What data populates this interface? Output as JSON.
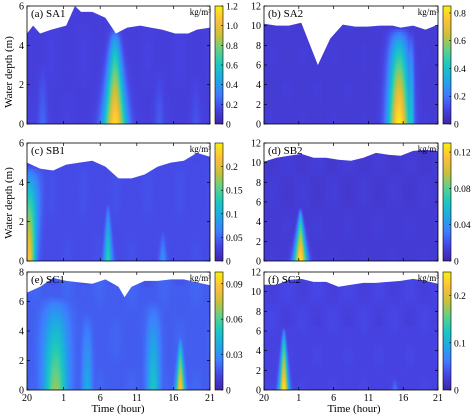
{
  "figure": {
    "ylabel": "Water depth (m)",
    "xlabel": "Time (hour)",
    "x_ticks": [
      "20",
      "1",
      "6",
      "11",
      "16",
      "21"
    ],
    "colors": {
      "background": "#ffffff",
      "surface_fill": "#ffffff",
      "colormap": [
        "#3e26a8",
        "#4743e3",
        "#3e7dfe",
        "#1fa8e4",
        "#1ac7c2",
        "#5fd08a",
        "#c9c13a",
        "#fdbf3c",
        "#f8f00e"
      ]
    }
  },
  "chart_data": [
    {
      "type": "heatmap",
      "label": "(a) SA1",
      "unit": "kg/m³",
      "ylim": [
        0,
        6
      ],
      "y_ticks": [
        0,
        2,
        4,
        6
      ],
      "clim": [
        0,
        1.2
      ],
      "cbar_ticks": [
        "0",
        "0.2",
        "0.4",
        "0.6",
        "0.8",
        "1.0",
        "1.2"
      ],
      "surface": {
        "x": [
          0,
          0.7,
          1.5,
          2.8,
          4.5,
          5.5,
          6.2,
          7.5,
          9,
          10.2,
          11.5,
          13,
          14.2,
          15.5,
          17,
          18.5,
          19.5,
          21
        ],
        "depth": [
          4.6,
          5.0,
          4.6,
          4.8,
          5.0,
          6.0,
          5.7,
          5.7,
          5.4,
          4.6,
          4.9,
          5.0,
          4.9,
          4.8,
          4.6,
          4.6,
          4.8,
          4.9
        ]
      },
      "background_level": 0.13,
      "plumes": [
        {
          "x": 10.1,
          "peak": 1.15,
          "width_bottom": 0.9,
          "width_top": 0.35,
          "top": 5.0
        },
        {
          "x": 1.8,
          "peak": 0.25,
          "width_bottom": 0.4,
          "width_top": 0.25,
          "top": 4.6
        },
        {
          "x": 15.2,
          "peak": 0.22,
          "width_bottom": 0.4,
          "width_top": 0.25,
          "top": 4.8
        },
        {
          "x": 19.4,
          "peak": 0.2,
          "width_bottom": 0.4,
          "width_top": 0.25,
          "top": 4.7
        }
      ]
    },
    {
      "type": "heatmap",
      "label": "(b) SA2",
      "unit": "kg/m³",
      "ylim": [
        0,
        12
      ],
      "y_ticks": [
        0,
        2,
        4,
        6,
        8,
        10,
        12
      ],
      "clim": [
        0,
        0.85
      ],
      "cbar_ticks": [
        "0",
        "0.2",
        "0.4",
        "0.6",
        "0.8"
      ],
      "surface": {
        "x": [
          0,
          1.5,
          3,
          4.5,
          6.5,
          8,
          9.5,
          11,
          12.5,
          14,
          15.5,
          16.5,
          18,
          19.5,
          21
        ],
        "depth": [
          10.2,
          10.0,
          10.0,
          10.3,
          6.0,
          8.7,
          10.1,
          9.9,
          9.9,
          10.0,
          10.0,
          9.8,
          10.0,
          9.6,
          10.1
        ]
      },
      "background_level": 0.08,
      "plumes": [
        {
          "x": 16.3,
          "peak": 0.86,
          "width_bottom": 0.9,
          "width_top": 0.8,
          "top": 10.0
        },
        {
          "x": 15.2,
          "peak": 0.4,
          "width_bottom": 0.3,
          "width_top": 0.3,
          "top": 10.0
        },
        {
          "x": 17.7,
          "peak": 0.45,
          "width_bottom": 0.3,
          "width_top": 0.3,
          "top": 10.0
        }
      ]
    },
    {
      "type": "heatmap",
      "label": "(c) SB1",
      "unit": "kg/m³",
      "ylim": [
        0,
        6
      ],
      "y_ticks": [
        0,
        2,
        4,
        6
      ],
      "clim": [
        0,
        0.25
      ],
      "cbar_ticks": [
        "0",
        "0.05",
        "0.1",
        "0.15",
        "0.2"
      ],
      "surface": {
        "x": [
          0,
          1.5,
          3,
          4.5,
          6,
          7.5,
          9,
          10.5,
          12,
          13.5,
          15,
          16.5,
          18,
          19.5,
          21
        ],
        "depth": [
          5.0,
          4.7,
          4.6,
          4.9,
          5.0,
          5.1,
          4.8,
          4.2,
          4.2,
          4.4,
          4.8,
          5.0,
          5.1,
          5.5,
          5.3
        ]
      },
      "background_level": 0.035,
      "plumes": [
        {
          "x": 0.2,
          "peak": 0.23,
          "width_bottom": 0.5,
          "width_top": 0.9,
          "top": 5.0
        },
        {
          "x": 9.3,
          "peak": 0.14,
          "width_bottom": 0.35,
          "width_top": 0.1,
          "top": 3.2
        },
        {
          "x": 15.6,
          "peak": 0.08,
          "width_bottom": 0.3,
          "width_top": 0.1,
          "top": 2.0
        }
      ]
    },
    {
      "type": "heatmap",
      "label": "(d) SB2",
      "unit": "kg/m³",
      "ylim": [
        0,
        12
      ],
      "y_ticks": [
        0,
        2,
        4,
        6,
        8,
        10,
        12
      ],
      "clim": [
        0,
        0.13
      ],
      "cbar_ticks": [
        "0",
        "0.04",
        "0.08",
        "0.12"
      ],
      "surface": {
        "x": [
          0,
          1.5,
          3,
          4.5,
          6,
          7.5,
          9,
          10.5,
          12,
          13.5,
          15,
          16.5,
          18,
          19.5,
          21
        ],
        "depth": [
          10.1,
          10.5,
          10.7,
          10.9,
          10.5,
          10.5,
          10.3,
          10.2,
          10.5,
          11.0,
          10.8,
          10.7,
          11.2,
          11.3,
          11.2
        ]
      },
      "background_level": 0.012,
      "plumes": [
        {
          "x": 4.4,
          "peak": 0.13,
          "width_bottom": 0.55,
          "width_top": 0.1,
          "top": 5.5
        }
      ]
    },
    {
      "type": "heatmap",
      "label": "(e) SC1",
      "unit": "kg/m³",
      "ylim": [
        0,
        8
      ],
      "y_ticks": [
        0,
        2,
        4,
        6,
        8
      ],
      "clim": [
        0,
        0.1
      ],
      "cbar_ticks": [
        "0",
        "0.03",
        "0.06",
        "0.09"
      ],
      "surface": {
        "x": [
          0,
          1.5,
          3,
          4.5,
          6,
          7.5,
          9,
          10.5,
          11.2,
          12,
          13.5,
          15,
          16.5,
          18,
          19.5,
          21
        ],
        "depth": [
          6.6,
          7.0,
          7.6,
          7.4,
          7.3,
          7.2,
          7.5,
          7.0,
          6.3,
          7.0,
          7.4,
          7.4,
          7.5,
          7.5,
          7.3,
          7.1
        ]
      },
      "background_level": 0.018,
      "plumes": [
        {
          "x": 3.3,
          "peak": 0.07,
          "width_bottom": 0.9,
          "width_top": 1.1,
          "top": 7.0
        },
        {
          "x": 6.9,
          "peak": 0.04,
          "width_bottom": 0.4,
          "width_top": 0.4,
          "top": 7.0
        },
        {
          "x": 14.5,
          "peak": 0.05,
          "width_bottom": 0.5,
          "width_top": 0.6,
          "top": 7.2
        },
        {
          "x": 17.6,
          "peak": 0.092,
          "width_bottom": 0.35,
          "width_top": 0.1,
          "top": 3.8
        }
      ]
    },
    {
      "type": "heatmap",
      "label": "(f) SC2",
      "unit": "kg/m³",
      "ylim": [
        0,
        12
      ],
      "y_ticks": [
        0,
        2,
        4,
        6,
        8,
        10,
        12
      ],
      "clim": [
        0,
        0.25
      ],
      "cbar_ticks": [
        "0",
        "0.1",
        "0.2"
      ],
      "surface": {
        "x": [
          0,
          1.5,
          3,
          4.5,
          6,
          7.5,
          9,
          10.5,
          12,
          13.5,
          15,
          16.5,
          18,
          19.5,
          21
        ],
        "depth": [
          10.7,
          10.7,
          11.2,
          11.3,
          11.0,
          11.0,
          10.5,
          10.7,
          10.9,
          10.9,
          11.0,
          11.1,
          11.3,
          11.1,
          10.8
        ]
      },
      "background_level": 0.03,
      "plumes": [
        {
          "x": 2.4,
          "peak": 0.25,
          "width_bottom": 0.4,
          "width_top": 0.1,
          "top": 6.5
        },
        {
          "x": 15.8,
          "peak": 0.06,
          "width_bottom": 0.25,
          "width_top": 0.1,
          "top": 1.8
        }
      ]
    }
  ]
}
